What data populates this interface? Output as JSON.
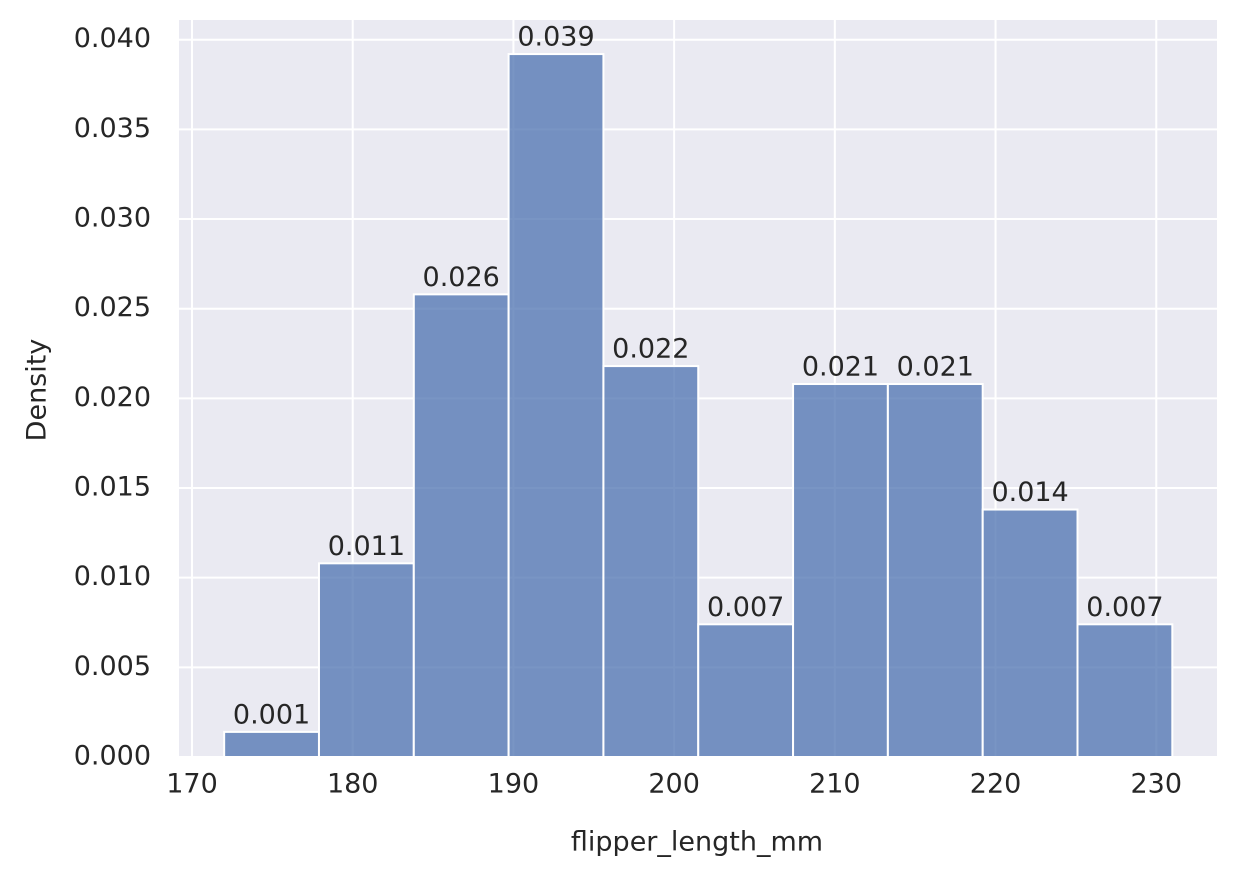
{
  "chart_data": {
    "type": "histogram",
    "xlabel": "flipper_length_mm",
    "ylabel": "Density",
    "bins": [
      172,
      177.9,
      183.8,
      189.7,
      195.6,
      201.5,
      207.4,
      213.3,
      219.2,
      225.1,
      231
    ],
    "values": [
      0.0014,
      0.0108,
      0.0258,
      0.0392,
      0.0218,
      0.0074,
      0.0208,
      0.0208,
      0.0138,
      0.0074
    ],
    "value_labels": [
      "0.001",
      "0.011",
      "0.026",
      "0.039",
      "0.022",
      "0.007",
      "0.021",
      "0.021",
      "0.014",
      "0.007"
    ],
    "color": "#4c72b0",
    "xlim": [
      169.19,
      233.78
    ],
    "ylim": [
      0,
      0.0411
    ],
    "xticks": [
      170,
      180,
      190,
      200,
      210,
      220,
      230
    ],
    "yticks": [
      {
        "value": 0,
        "label": "0.000"
      },
      {
        "value": 0.005,
        "label": "0.005"
      },
      {
        "value": 0.01,
        "label": "0.010"
      },
      {
        "value": 0.015,
        "label": "0.015"
      },
      {
        "value": 0.02,
        "label": "0.020"
      },
      {
        "value": 0.025,
        "label": "0.025"
      },
      {
        "value": 0.03,
        "label": "0.030"
      },
      {
        "value": 0.035,
        "label": "0.035"
      },
      {
        "value": 0.04,
        "label": "0.040"
      }
    ],
    "grid": true
  }
}
